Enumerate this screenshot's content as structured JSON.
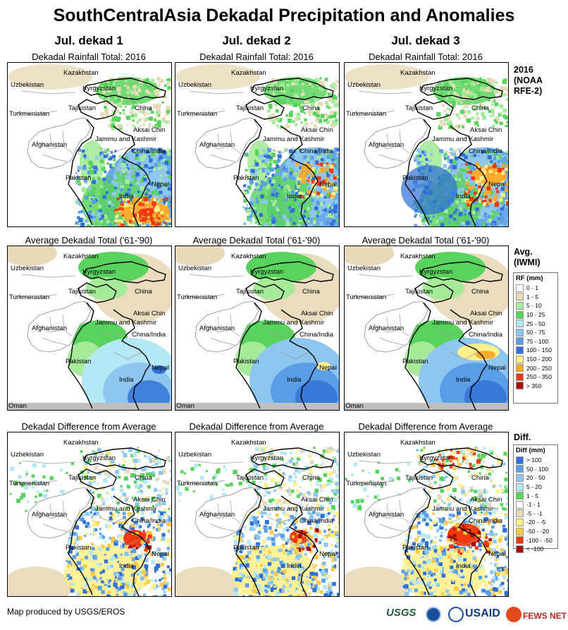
{
  "title": "SouthCentralAsia Dekadal Precipitation and Anomalies",
  "columns": [
    {
      "heading": "Jul. dekad 1"
    },
    {
      "heading": "Jul. dekad 2"
    },
    {
      "heading": "Jul. dekad 3"
    }
  ],
  "rows": [
    {
      "subtitle": "Dekadal Rainfall Total: 2016",
      "kind": "rainfall"
    },
    {
      "subtitle": "Average Dekadal Total ('61-'90)",
      "kind": "average"
    },
    {
      "subtitle": "Dekadal Difference from Average",
      "kind": "difference"
    }
  ],
  "map_labels": {
    "kazakhstan": "Kazakhstan",
    "uzbekistan": "Uzbekistan",
    "kyrgyzstan": "Kyrgyzstan",
    "turkmenistan": "Turkmenistan",
    "tajikistan": "Tajikistan",
    "china": "China",
    "afghanistan": "Afghanistan",
    "aksai_chin": "Aksai Chin",
    "jammu_kashmir": "Jammu and Kashmir",
    "china_india": "China/India",
    "pakistan": "Pakistan",
    "nepal": "Nepal",
    "india": "India",
    "oman": "Oman"
  },
  "side": {
    "rainfall_title": [
      "2016",
      "(NOAA",
      "RFE-2)"
    ],
    "average_title": [
      "Avg.",
      "(IWMI)"
    ],
    "difference_title": [
      "Diff."
    ]
  },
  "rf_legend": {
    "title": "RF (mm)",
    "items": [
      {
        "label": "0 - 1",
        "color": "#ffffff"
      },
      {
        "label": "1 - 5",
        "color": "#e8d9b8"
      },
      {
        "label": "5 - 10",
        "color": "#a6eb9a"
      },
      {
        "label": "10 - 25",
        "color": "#5ad35e"
      },
      {
        "label": "25 - 50",
        "color": "#b4e8f5"
      },
      {
        "label": "50 - 75",
        "color": "#8ec6f0"
      },
      {
        "label": "75 - 100",
        "color": "#5a9ee8"
      },
      {
        "label": "100 - 150",
        "color": "#2f6fd6"
      },
      {
        "label": "150 - 200",
        "color": "#fff08a"
      },
      {
        "label": "200 - 250",
        "color": "#ffab2e"
      },
      {
        "label": "250 - 350",
        "color": "#f23a10"
      },
      {
        "label": "> 350",
        "color": "#a31010"
      }
    ]
  },
  "diff_legend": {
    "title": "Diff (mm)",
    "items": [
      {
        "label": "> 100",
        "color": "#2f6fd6"
      },
      {
        "label": "50 - 100",
        "color": "#5a9ee8"
      },
      {
        "label": "20 - 50",
        "color": "#8ec6f0"
      },
      {
        "label": "5 - 20",
        "color": "#b4e8f5"
      },
      {
        "label": "1 - 5",
        "color": "#5ad35e"
      },
      {
        "label": "-1 - 1",
        "color": "#ffffff"
      },
      {
        "label": "-5 - -1",
        "color": "#e8d9b8"
      },
      {
        "label": "-20 - -5",
        "color": "#fff08a"
      },
      {
        "label": "-50 - -20",
        "color": "#ffc94a"
      },
      {
        "label": "-100 - -50",
        "color": "#f23a10"
      },
      {
        "label": "< -100",
        "color": "#a31010"
      }
    ]
  },
  "footer": {
    "credit": "Map produced by USGS/EROS",
    "logo_usgs": "USGS",
    "logo_noaa": "NOAA",
    "logo_usaid": "USAID",
    "logo_fews": "FEWS NET"
  }
}
